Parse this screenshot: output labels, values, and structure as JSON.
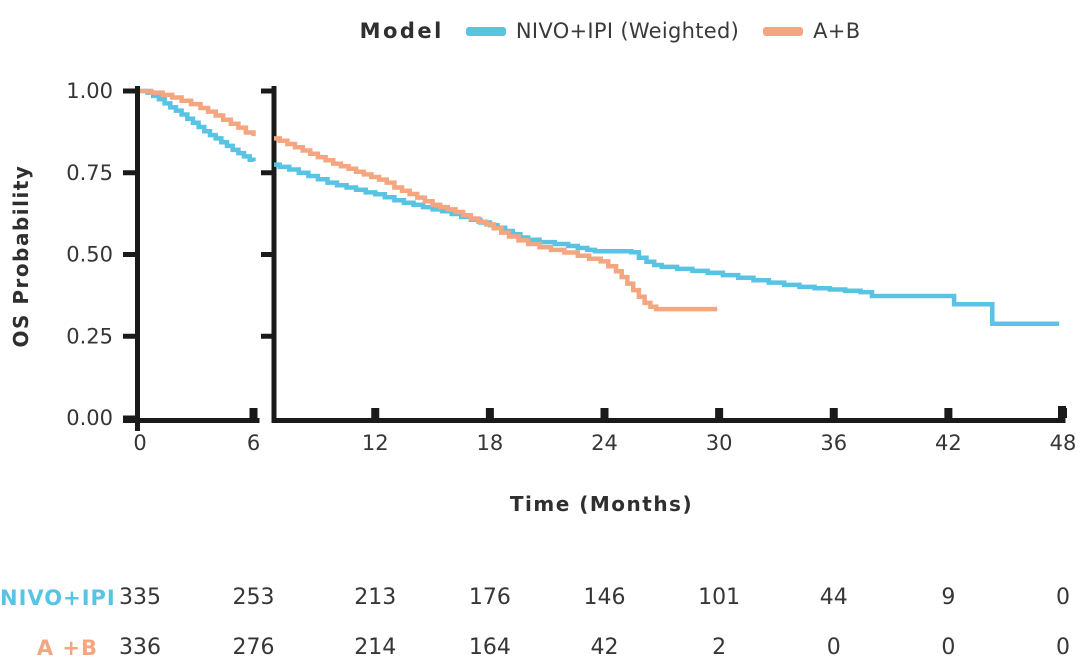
{
  "chart_data": {
    "type": "line",
    "subtype": "kaplan-meier-step-curves-with-axis-break",
    "legend": {
      "title": "Model",
      "entries": [
        {
          "label": "NIVO+IPI (Weighted)",
          "color": "#58c3e3"
        },
        {
          "label": "A+B",
          "color": "#f4a680"
        }
      ],
      "position": "top-center"
    },
    "xlabel": "Time (Months)",
    "ylabel": "OS Probability",
    "x_axis": {
      "ticks_left_panel": [
        0,
        6
      ],
      "ticks_right_panel": [
        12,
        18,
        24,
        30,
        36,
        42,
        48
      ],
      "break_after_month": 6,
      "resume_month": 6.7,
      "range": [
        0,
        48
      ],
      "grid": false
    },
    "y_axis": {
      "ticks": [
        0,
        0.25,
        0.5,
        0.75,
        1
      ],
      "tick_labels": [
        "0.00",
        "0.25",
        "0.50",
        "0.75",
        "1.00"
      ],
      "range": [
        0,
        1
      ],
      "grid": false
    },
    "axis_color": "#1a1a1a",
    "text_color": "#363636",
    "series": [
      {
        "name": "NIVO+IPI (Weighted)",
        "color": "#58c3e3",
        "segments": [
          [
            [
              0,
              1
            ],
            [
              0.4,
              0.995
            ],
            [
              0.7,
              0.985
            ],
            [
              1,
              0.975
            ],
            [
              1.3,
              0.962
            ],
            [
              1.6,
              0.95
            ],
            [
              1.9,
              0.94
            ],
            [
              2.2,
              0.928
            ],
            [
              2.5,
              0.915
            ],
            [
              2.8,
              0.903
            ],
            [
              3.1,
              0.89
            ],
            [
              3.4,
              0.877
            ],
            [
              3.7,
              0.865
            ],
            [
              4,
              0.855
            ],
            [
              4.3,
              0.843
            ],
            [
              4.6,
              0.832
            ],
            [
              4.9,
              0.82
            ],
            [
              5.2,
              0.81
            ],
            [
              5.5,
              0.8
            ],
            [
              5.8,
              0.79
            ],
            [
              6,
              0.785
            ]
          ],
          [
            [
              6.7,
              0.775
            ],
            [
              7,
              0.768
            ],
            [
              7.5,
              0.76
            ],
            [
              8,
              0.75
            ],
            [
              8.5,
              0.74
            ],
            [
              9,
              0.73
            ],
            [
              9.5,
              0.72
            ],
            [
              10,
              0.712
            ],
            [
              10.5,
              0.705
            ],
            [
              11,
              0.698
            ],
            [
              11.5,
              0.69
            ],
            [
              12,
              0.684
            ],
            [
              12.5,
              0.675
            ],
            [
              13,
              0.666
            ],
            [
              13.5,
              0.658
            ],
            [
              14,
              0.652
            ],
            [
              14.5,
              0.645
            ],
            [
              15,
              0.638
            ],
            [
              15.5,
              0.632
            ],
            [
              16,
              0.624
            ],
            [
              16.5,
              0.615
            ],
            [
              17,
              0.606
            ],
            [
              17.5,
              0.598
            ],
            [
              18,
              0.59
            ],
            [
              18.4,
              0.582
            ],
            [
              18.8,
              0.572
            ],
            [
              19.2,
              0.562
            ],
            [
              19.6,
              0.552
            ],
            [
              20,
              0.545
            ],
            [
              20.6,
              0.538
            ],
            [
              21.4,
              0.532
            ],
            [
              22.1,
              0.526
            ],
            [
              22.6,
              0.52
            ],
            [
              23.1,
              0.514
            ],
            [
              23.5,
              0.51
            ],
            [
              25.4,
              0.507
            ],
            [
              25.8,
              0.49
            ],
            [
              26.2,
              0.478
            ],
            [
              26.6,
              0.468
            ],
            [
              27,
              0.462
            ],
            [
              27.8,
              0.456
            ],
            [
              28.6,
              0.45
            ],
            [
              29.4,
              0.444
            ],
            [
              30.2,
              0.437
            ],
            [
              31,
              0.429
            ],
            [
              31.8,
              0.421
            ],
            [
              32.6,
              0.414
            ],
            [
              33.4,
              0.407
            ],
            [
              34.2,
              0.401
            ],
            [
              35,
              0.397
            ],
            [
              35.8,
              0.393
            ],
            [
              36.6,
              0.389
            ],
            [
              37.4,
              0.385
            ],
            [
              38,
              0.373
            ],
            [
              42.3,
              0.348
            ],
            [
              44.3,
              0.288
            ],
            [
              47.8,
              0.288
            ]
          ]
        ]
      },
      {
        "name": "A+B",
        "color": "#f4a680",
        "segments": [
          [
            [
              0,
              1
            ],
            [
              0.6,
              0.995
            ],
            [
              1.2,
              0.988
            ],
            [
              1.7,
              0.98
            ],
            [
              2.2,
              0.97
            ],
            [
              2.7,
              0.96
            ],
            [
              3.2,
              0.948
            ],
            [
              3.6,
              0.937
            ],
            [
              4,
              0.925
            ],
            [
              4.4,
              0.912
            ],
            [
              4.8,
              0.9
            ],
            [
              5.2,
              0.888
            ],
            [
              5.6,
              0.873
            ],
            [
              6,
              0.862
            ]
          ],
          [
            [
              6.7,
              0.855
            ],
            [
              7,
              0.848
            ],
            [
              7.4,
              0.838
            ],
            [
              7.8,
              0.828
            ],
            [
              8.2,
              0.818
            ],
            [
              8.6,
              0.808
            ],
            [
              9,
              0.798
            ],
            [
              9.4,
              0.788
            ],
            [
              9.8,
              0.778
            ],
            [
              10.2,
              0.77
            ],
            [
              10.6,
              0.762
            ],
            [
              11,
              0.753
            ],
            [
              11.4,
              0.745
            ],
            [
              11.8,
              0.737
            ],
            [
              12.2,
              0.729
            ],
            [
              12.6,
              0.72
            ],
            [
              13,
              0.705
            ],
            [
              13.4,
              0.695
            ],
            [
              13.8,
              0.685
            ],
            [
              14.2,
              0.674
            ],
            [
              14.6,
              0.663
            ],
            [
              15,
              0.652
            ],
            [
              15.4,
              0.645
            ],
            [
              15.8,
              0.638
            ],
            [
              16.2,
              0.63
            ],
            [
              16.6,
              0.62
            ],
            [
              17,
              0.61
            ],
            [
              17.4,
              0.6
            ],
            [
              17.8,
              0.592
            ],
            [
              18.2,
              0.58
            ],
            [
              18.6,
              0.567
            ],
            [
              19,
              0.555
            ],
            [
              19.5,
              0.543
            ],
            [
              20,
              0.532
            ],
            [
              20.6,
              0.522
            ],
            [
              21.2,
              0.514
            ],
            [
              21.9,
              0.506
            ],
            [
              22.6,
              0.496
            ],
            [
              23.2,
              0.487
            ],
            [
              23.8,
              0.479
            ],
            [
              24.2,
              0.464
            ],
            [
              24.6,
              0.449
            ],
            [
              24.9,
              0.431
            ],
            [
              25.2,
              0.411
            ],
            [
              25.5,
              0.391
            ],
            [
              25.8,
              0.371
            ],
            [
              26.1,
              0.352
            ],
            [
              26.4,
              0.34
            ],
            [
              26.7,
              0.333
            ],
            [
              29.9,
              0.333
            ]
          ]
        ]
      }
    ],
    "risk_table": {
      "time_points": [
        0,
        6,
        12,
        18,
        24,
        30,
        36,
        42,
        48
      ],
      "rows": [
        {
          "label": "NIVO+IPI",
          "color": "#58c3e3",
          "values": [
            "335",
            "253",
            "213",
            "176",
            "146",
            "101",
            "44",
            "9",
            "0"
          ]
        },
        {
          "label": "A +B",
          "color": "#f4a680",
          "values": [
            "336",
            "276",
            "214",
            "164",
            "42",
            "2",
            "0",
            "0",
            "0"
          ]
        }
      ]
    }
  }
}
